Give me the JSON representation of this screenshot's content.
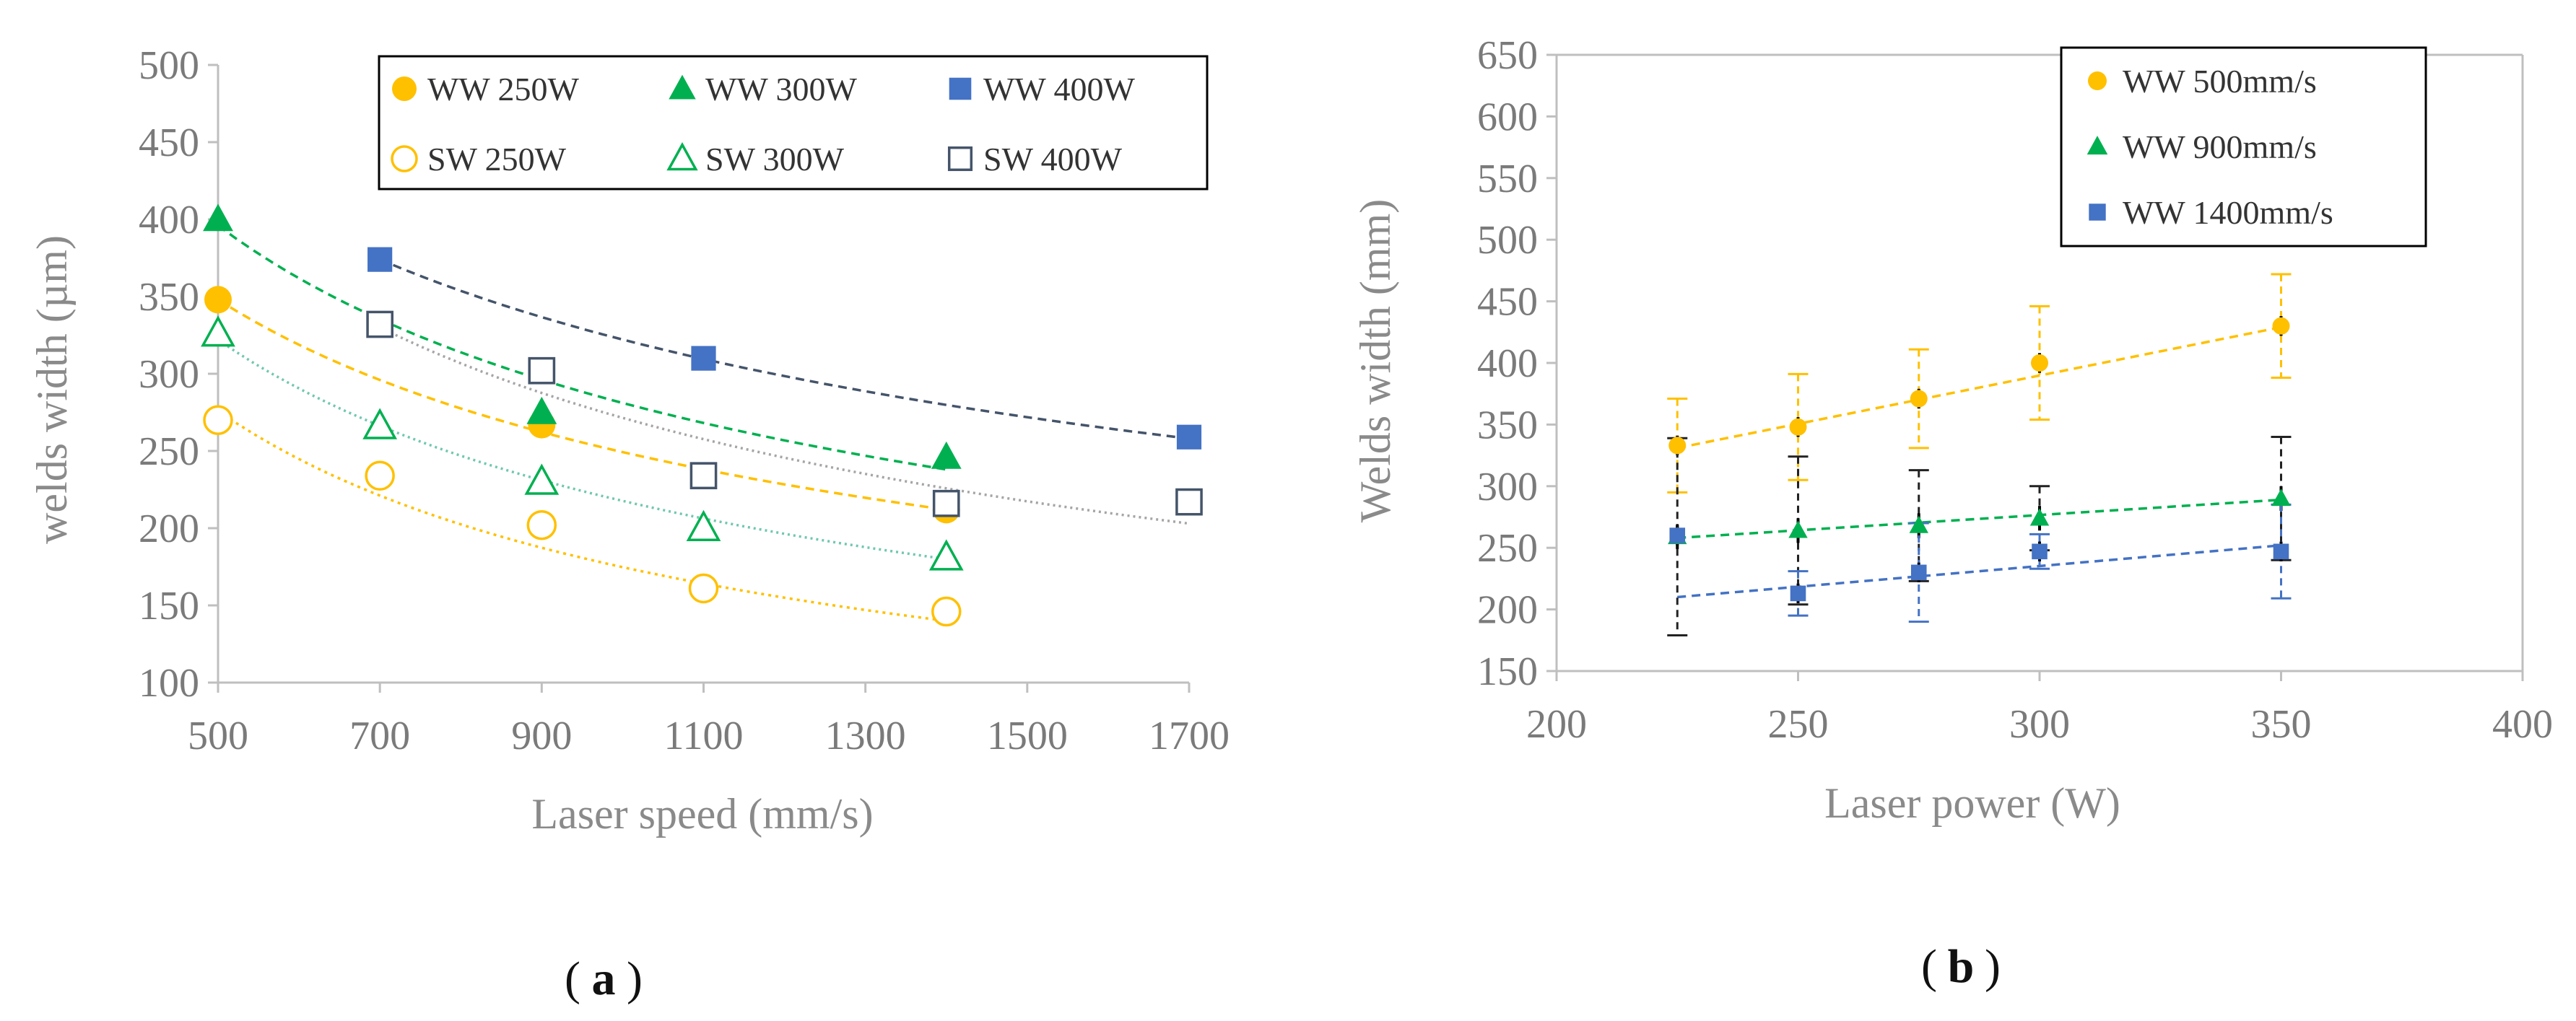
{
  "chart_data": [
    {
      "panel_label": "a",
      "type": "scatter",
      "xlabel": "Laser speed (mm/s)",
      "ylabel": "welds width (µm)",
      "xlim": [
        500,
        1700
      ],
      "ylim": [
        100,
        500
      ],
      "xticks": [
        500,
        700,
        900,
        1100,
        1300,
        1500,
        1700
      ],
      "yticks": [
        100,
        150,
        200,
        250,
        300,
        350,
        400,
        450,
        500
      ],
      "legend_position": "top-right",
      "series": [
        {
          "name": "WW 250W",
          "marker": "circle-filled",
          "color": "#ffc000",
          "x": [
            500,
            900,
            1400
          ],
          "y": [
            348,
            267,
            212
          ],
          "trend": {
            "x": [
              500,
              1400
            ],
            "y": [
              348,
              212
            ],
            "dash": "12 8"
          }
        },
        {
          "name": "WW 300W",
          "marker": "triangle-filled",
          "color": "#00b050",
          "x": [
            500,
            900,
            1400
          ],
          "y": [
            400,
            275,
            246
          ],
          "trend": {
            "x": [
              500,
              1400
            ],
            "y": [
              396,
              238
            ],
            "dash": "12 8"
          }
        },
        {
          "name": "WW 400W",
          "marker": "square-filled",
          "color": "#4472c4",
          "x": [
            700,
            1100,
            1700
          ],
          "y": [
            374,
            310,
            259
          ],
          "trend": {
            "x": [
              700,
              1700
            ],
            "y": [
              374,
              258
            ],
            "dash": "12 8"
          }
        },
        {
          "name": "SW 250W",
          "marker": "circle-open",
          "color": "#ffc000",
          "x": [
            500,
            700,
            900,
            1100,
            1400
          ],
          "y": [
            270,
            234,
            202,
            161,
            146
          ],
          "trend": {
            "x": [
              500,
              1400
            ],
            "y": [
              276,
              140
            ],
            "dash": "4 6"
          }
        },
        {
          "name": "SW 300W",
          "marker": "triangle-open",
          "color": "#00b050",
          "x": [
            500,
            700,
            900,
            1100,
            1400
          ],
          "y": [
            326,
            266,
            230,
            200,
            181
          ],
          "trend": {
            "x": [
              500,
              1400
            ],
            "y": [
              322,
              180
            ],
            "dash": "3 5"
          }
        },
        {
          "name": "SW 400W",
          "marker": "square-open",
          "color": "#44546a",
          "x": [
            700,
            900,
            1100,
            1400,
            1700
          ],
          "y": [
            332,
            302,
            234,
            216,
            217
          ],
          "trend": {
            "x": [
              700,
              1700
            ],
            "y": [
              330,
              203
            ],
            "dash": "3 5"
          }
        }
      ],
      "trend_colors": {
        "WW 250W": "#ffc000",
        "WW 300W": "#00b050",
        "WW 400W": "#44546a",
        "SW 250W": "#ffc000",
        "SW 300W": "#70c7b0",
        "SW 400W": "#a5a5a5"
      }
    },
    {
      "panel_label": "b",
      "type": "scatter",
      "xlabel": "Laser power (W)",
      "ylabel": "Welds width (mm)",
      "xlim": [
        200,
        400
      ],
      "ylim": [
        150,
        650
      ],
      "xticks": [
        200,
        250,
        300,
        350,
        400
      ],
      "yticks": [
        150,
        200,
        250,
        300,
        350,
        400,
        450,
        500,
        550,
        600,
        650
      ],
      "legend_position": "top-right",
      "series": [
        {
          "name": "WW 500mm/s",
          "marker": "circle-filled",
          "color": "#ffc000",
          "x": [
            225,
            250,
            275,
            300,
            350
          ],
          "y": [
            333,
            348,
            371,
            400,
            430
          ],
          "error_color": "#ffc000",
          "err": [
            38,
            43,
            40,
            46,
            42
          ],
          "err_inner": [
            8,
            8,
            8,
            8,
            8
          ],
          "trend": {
            "x": [
              225,
              350
            ],
            "y": [
              331,
              429
            ]
          }
        },
        {
          "name": "WW 900mm/s",
          "marker": "triangle-filled",
          "color": "#00b050",
          "x": [
            225,
            250,
            275,
            300,
            350
          ],
          "y": [
            259,
            264,
            268,
            274,
            290
          ],
          "error_color": "#222222",
          "err": [
            80,
            60,
            45,
            26,
            50
          ],
          "err_inner": [
            10,
            10,
            10,
            10,
            10
          ],
          "trend": {
            "x": [
              225,
              350
            ],
            "y": [
              258,
              289
            ]
          }
        },
        {
          "name": "WW 1400mm/s",
          "marker": "square-filled",
          "color": "#4472c4",
          "x": [
            225,
            250,
            275,
            300,
            350
          ],
          "y": [
            260,
            213,
            230,
            247,
            247
          ],
          "error_color": "#4472c4",
          "err": [
            0,
            18,
            40,
            14,
            38
          ],
          "err_inner": [
            8,
            8,
            8,
            8,
            8
          ],
          "trend": {
            "x": [
              225,
              350
            ],
            "y": [
              210,
              252
            ]
          }
        }
      ]
    }
  ]
}
